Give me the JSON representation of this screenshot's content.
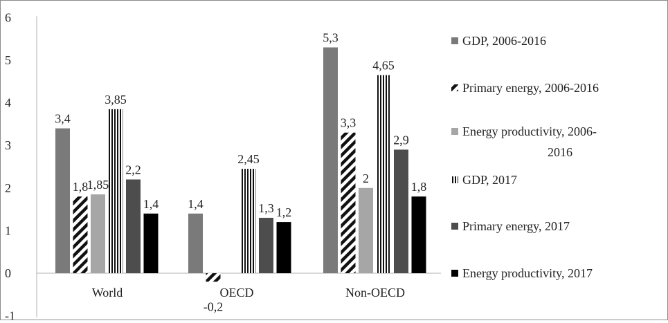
{
  "chart_data": {
    "type": "bar",
    "title": "",
    "xlabel": "",
    "ylabel": "",
    "ylim": [
      -1,
      6
    ],
    "yticks": [
      "-1",
      "0",
      "1",
      "2",
      "3",
      "4",
      "5",
      "6"
    ],
    "grid": false,
    "legend_position": "right",
    "categories": [
      "World",
      "OECD",
      "Non-OECD"
    ],
    "series": [
      {
        "name": "GDP, 2006-2016",
        "color": "#7a7a7a",
        "pattern": "solid",
        "values": [
          3.4,
          1.4,
          5.3
        ],
        "labels": [
          "3,4",
          "1,4",
          "5,3"
        ]
      },
      {
        "name": "Primary energy, 2006-2016",
        "color": "#111111",
        "pattern": "diagonal-stripes",
        "values": [
          1.8,
          -0.2,
          3.3
        ],
        "labels": [
          "1,8",
          "-0,2",
          "3,3"
        ]
      },
      {
        "name": "Energy productivity, 2006-2016",
        "color": "#a6a6a6",
        "pattern": "solid",
        "values": [
          1.85,
          null,
          2
        ],
        "labels": [
          "1,85",
          "",
          "2"
        ]
      },
      {
        "name": "GDP, 2017",
        "color": "#111111",
        "pattern": "vertical-stripes",
        "values": [
          3.85,
          2.45,
          4.65
        ],
        "labels": [
          "3,85",
          "2,45",
          "4,65"
        ]
      },
      {
        "name": "Primary energy, 2017",
        "color": "#4d4d4d",
        "pattern": "solid",
        "values": [
          2.2,
          1.3,
          2.9
        ],
        "labels": [
          "2,2",
          "1,3",
          "2,9"
        ]
      },
      {
        "name": "Energy productivity, 2017",
        "color": "#000000",
        "pattern": "solid",
        "values": [
          1.4,
          1.2,
          1.8
        ],
        "labels": [
          "1,4",
          "1,2",
          "1,8"
        ]
      }
    ],
    "legend": [
      {
        "lines": [
          "GDP, 2006-2016"
        ]
      },
      {
        "lines": [
          "Primary energy, 2006-2016"
        ]
      },
      {
        "lines": [
          "Energy productivity, 2006-",
          "2016"
        ]
      },
      {
        "lines": [
          "GDP, 2017"
        ]
      },
      {
        "lines": [
          "Primary energy, 2017"
        ]
      },
      {
        "lines": [
          "Energy productivity, 2017"
        ]
      }
    ]
  }
}
